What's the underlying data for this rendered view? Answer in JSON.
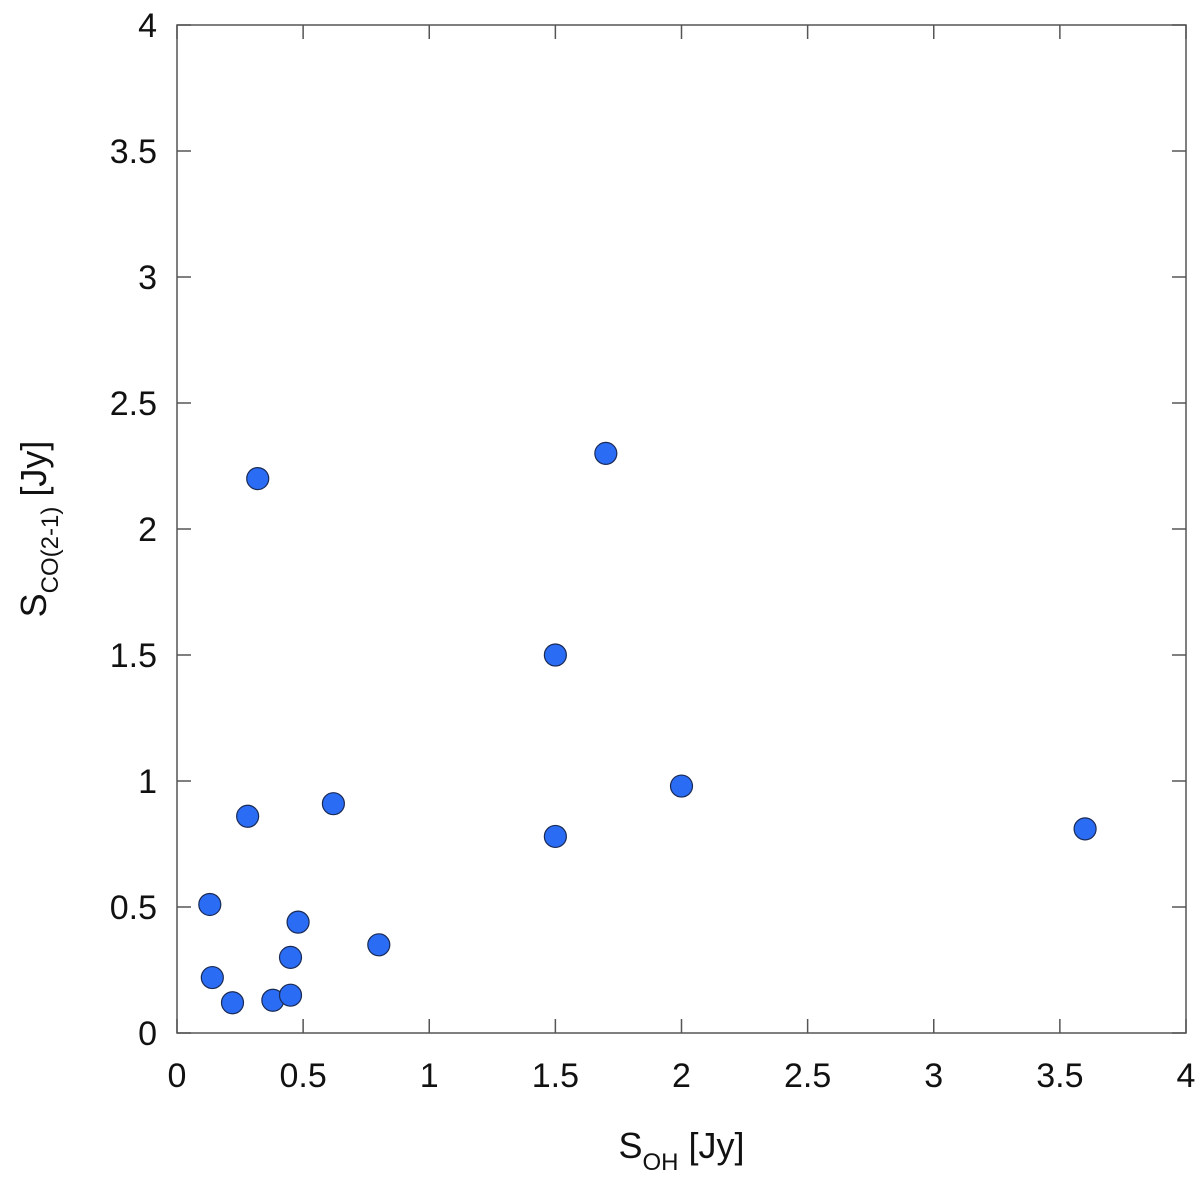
{
  "chart_data": {
    "type": "scatter",
    "title": "",
    "xlabel": "S",
    "xlabel_sub": "OH",
    "xlabel_unit": " [Jy]",
    "ylabel": "S",
    "ylabel_sub": "CO(2-1)",
    "ylabel_unit": " [Jy]",
    "xlim": [
      0,
      4
    ],
    "ylim": [
      0,
      4
    ],
    "xticks": [
      0,
      0.5,
      1,
      1.5,
      2,
      2.5,
      3,
      3.5,
      4
    ],
    "yticks": [
      0,
      0.5,
      1,
      1.5,
      2,
      2.5,
      3,
      3.5,
      4
    ],
    "xtick_labels": [
      "0",
      "0.5",
      "1",
      "1.5",
      "2",
      "2.5",
      "3",
      "3.5",
      "4"
    ],
    "ytick_labels": [
      "0",
      "0.5",
      "1",
      "1.5",
      "2",
      "2.5",
      "3",
      "3.5",
      "4"
    ],
    "grid": false,
    "marker_color": "#2a6df4",
    "marker_edge": "#1a2a55",
    "points": [
      {
        "x": 0.32,
        "y": 2.2
      },
      {
        "x": 1.7,
        "y": 2.3
      },
      {
        "x": 1.5,
        "y": 1.5
      },
      {
        "x": 2.0,
        "y": 0.98
      },
      {
        "x": 3.6,
        "y": 0.81
      },
      {
        "x": 1.5,
        "y": 0.78
      },
      {
        "x": 0.62,
        "y": 0.91
      },
      {
        "x": 0.28,
        "y": 0.86
      },
      {
        "x": 0.13,
        "y": 0.51
      },
      {
        "x": 0.48,
        "y": 0.44
      },
      {
        "x": 0.8,
        "y": 0.35
      },
      {
        "x": 0.45,
        "y": 0.3
      },
      {
        "x": 0.14,
        "y": 0.22
      },
      {
        "x": 0.22,
        "y": 0.12
      },
      {
        "x": 0.38,
        "y": 0.13
      },
      {
        "x": 0.45,
        "y": 0.15
      }
    ]
  }
}
